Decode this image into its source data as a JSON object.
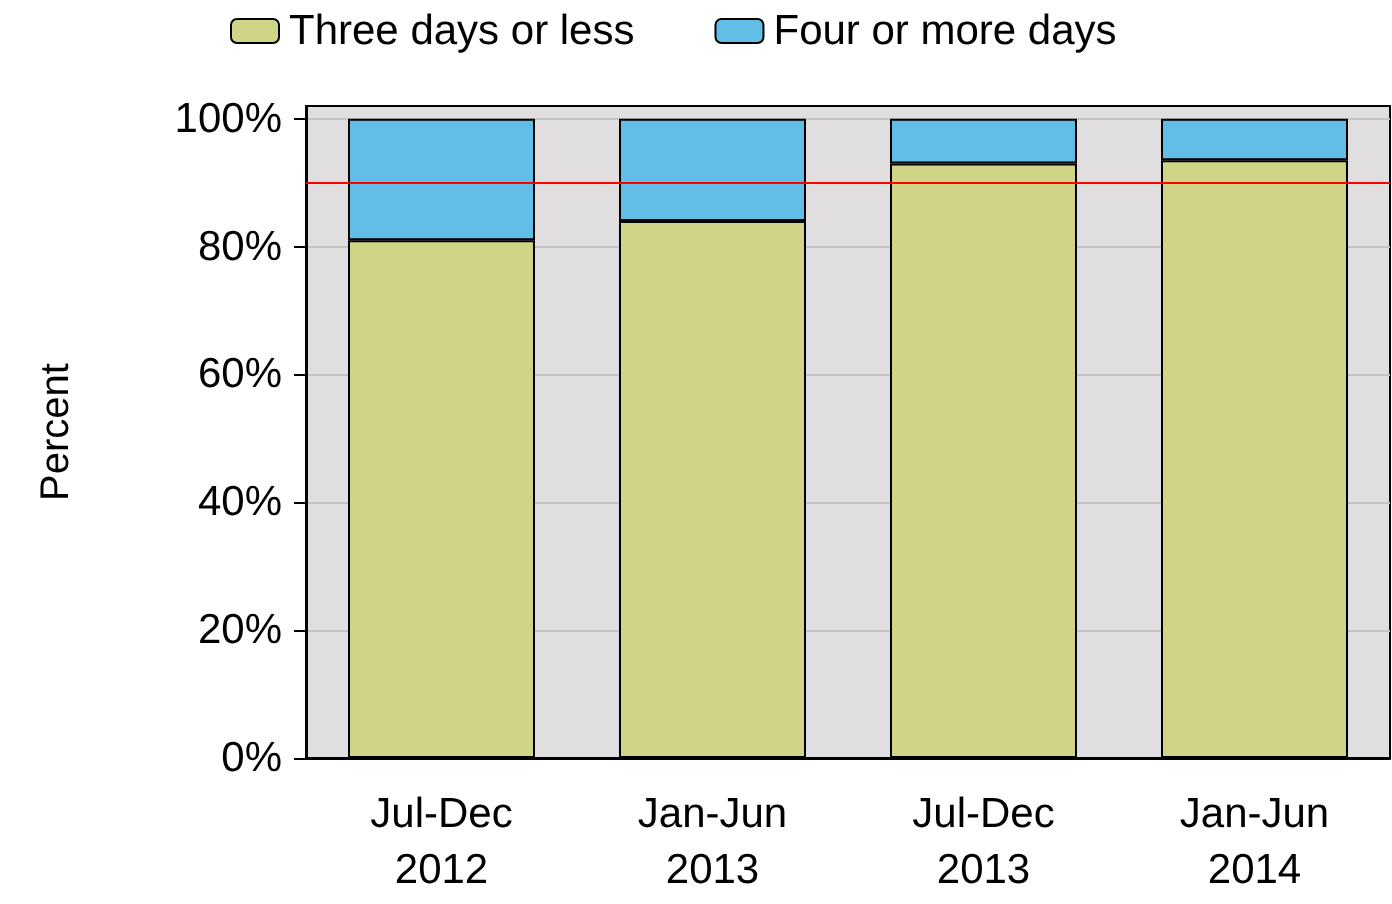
{
  "chart_data": {
    "type": "bar",
    "stacked": true,
    "ylabel": "Percent",
    "categories": [
      "Jul-Dec\n2012",
      "Jan-Jun\n2013",
      "Jul-Dec\n2013",
      "Jan-Jun\n2014"
    ],
    "series": [
      {
        "name": "Three days or less",
        "color": "#d0d486",
        "values": [
          81,
          84,
          93,
          93.5
        ]
      },
      {
        "name": "Four or more days",
        "color": "#62bee6",
        "values": [
          19,
          16,
          7,
          6.5
        ]
      }
    ],
    "ylim": [
      0,
      102
    ],
    "yticks": [
      {
        "value": 0,
        "label": "0%"
      },
      {
        "value": 20,
        "label": "20%"
      },
      {
        "value": 40,
        "label": "40%"
      },
      {
        "value": 60,
        "label": "60%"
      },
      {
        "value": 80,
        "label": "80%"
      },
      {
        "value": 100,
        "label": "100%"
      }
    ],
    "ref_lines": [
      {
        "axis": "y",
        "value": 90,
        "color": "#ff0000"
      }
    ],
    "grid": "y",
    "legend": "top"
  }
}
